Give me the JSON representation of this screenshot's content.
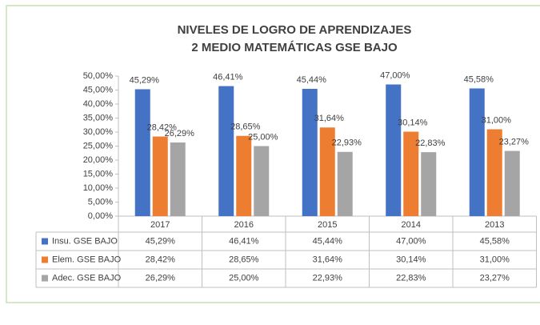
{
  "chart_data": {
    "type": "bar",
    "title": "NIVELES DE LOGRO DE APRENDIZAJES",
    "subtitle": "2 MEDIO MATEMÁTICAS GSE BAJO",
    "categories": [
      "2017",
      "2016",
      "2015",
      "2014",
      "2013"
    ],
    "series": [
      {
        "name": "Insu. GSE BAJO",
        "color": "#4472c4",
        "values": [
          45.29,
          46.41,
          45.44,
          47.0,
          45.58
        ],
        "value_labels": [
          "45,29%",
          "46,41%",
          "45,44%",
          "47,00%",
          "45,58%"
        ]
      },
      {
        "name": "Elem. GSE BAJO",
        "color": "#ed7d31",
        "values": [
          28.42,
          28.65,
          31.64,
          30.14,
          31.0
        ],
        "value_labels": [
          "28,42%",
          "28,65%",
          "31,64%",
          "30,14%",
          "31,00%"
        ]
      },
      {
        "name": "Adec. GSE BAJO",
        "color": "#a5a5a5",
        "values": [
          26.29,
          25.0,
          22.93,
          22.83,
          23.27
        ],
        "value_labels": [
          "26,29%",
          "25,00%",
          "22,93%",
          "22,83%",
          "23,27%"
        ]
      }
    ],
    "ylim": [
      0,
      50
    ],
    "yticks": [
      {
        "value": 0,
        "label": "0,00%"
      },
      {
        "value": 5,
        "label": "5,00%"
      },
      {
        "value": 10,
        "label": "10,00%"
      },
      {
        "value": 15,
        "label": "15,00%"
      },
      {
        "value": 20,
        "label": "20,00%"
      },
      {
        "value": 25,
        "label": "25,00%"
      },
      {
        "value": 30,
        "label": "30,00%"
      },
      {
        "value": 35,
        "label": "35,00%"
      },
      {
        "value": 40,
        "label": "40,00%"
      },
      {
        "value": 45,
        "label": "45,00%"
      },
      {
        "value": 50,
        "label": "50,00%"
      }
    ],
    "grid": false
  }
}
